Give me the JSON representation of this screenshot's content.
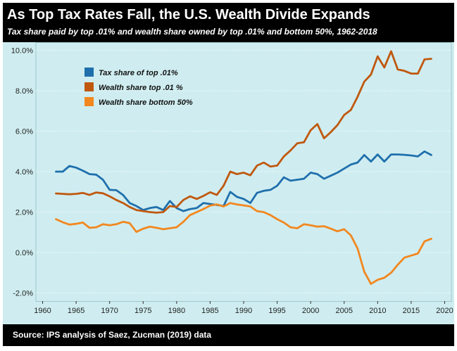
{
  "header": {
    "title": "As Top Tax Rates Fall, the U.S. Wealth Divide Expands",
    "subtitle": "Tax share paid by top .01% and wealth share owned by top .01% and bottom 50%, 1962-2018"
  },
  "footer": {
    "source": "Source: IPS analysis of Saez, Zucman (2019) data"
  },
  "colors": {
    "background": "#cfedf0",
    "header_bg": "#000000",
    "tax_top": "#1f6fad",
    "wealth_top": "#c0580f",
    "wealth_bottom": "#f2871f"
  },
  "chart_data": {
    "type": "line",
    "title": "As Top Tax Rates Fall, the U.S. Wealth Divide Expands",
    "subtitle": "Tax share paid by top .01% and wealth share owned by top .01% and bottom 50%, 1962-2018",
    "xlabel": "",
    "ylabel": "",
    "xlim": [
      1959,
      2021
    ],
    "ylim": [
      -2.4,
      10.4
    ],
    "x_ticks": [
      1960,
      1965,
      1970,
      1975,
      1980,
      1985,
      1990,
      1995,
      2000,
      2005,
      2010,
      2015,
      2020
    ],
    "y_ticks": [
      -2,
      0,
      2,
      4,
      6,
      8,
      10
    ],
    "y_tick_labels": [
      "-2.0%",
      "0.0%",
      "2.0%",
      "4.0%",
      "6.0%",
      "8.0%",
      "10.0%"
    ],
    "grid": true,
    "legend_position": "top-left",
    "x": [
      1962,
      1963,
      1964,
      1965,
      1966,
      1967,
      1968,
      1969,
      1970,
      1971,
      1972,
      1973,
      1974,
      1975,
      1976,
      1977,
      1978,
      1979,
      1980,
      1981,
      1982,
      1983,
      1984,
      1985,
      1986,
      1987,
      1988,
      1989,
      1990,
      1991,
      1992,
      1993,
      1994,
      1995,
      1996,
      1997,
      1998,
      1999,
      2000,
      2001,
      2002,
      2003,
      2004,
      2005,
      2006,
      2007,
      2008,
      2009,
      2010,
      2011,
      2012,
      2013,
      2014,
      2015,
      2016,
      2017,
      2018
    ],
    "series": [
      {
        "name": "Tax share of top .01%",
        "color": "#1f6fad",
        "values": [
          4.0,
          4.0,
          4.28,
          4.2,
          4.05,
          3.88,
          3.85,
          3.6,
          3.1,
          3.08,
          2.85,
          2.45,
          2.3,
          2.1,
          2.2,
          2.25,
          2.1,
          2.55,
          2.2,
          2.05,
          2.15,
          2.2,
          2.45,
          2.4,
          2.35,
          2.3,
          3.0,
          2.75,
          2.65,
          2.45,
          2.95,
          3.05,
          3.1,
          3.3,
          3.72,
          3.55,
          3.6,
          3.65,
          3.95,
          3.88,
          3.65,
          3.8,
          3.95,
          4.15,
          4.35,
          4.45,
          4.82,
          4.5,
          4.85,
          4.5,
          4.85,
          4.85,
          4.83,
          4.8,
          4.75,
          5.0,
          4.82
        ]
      },
      {
        "name": "Wealth share top .01 %",
        "color": "#c0580f",
        "values": [
          2.92,
          2.9,
          2.88,
          2.9,
          2.95,
          2.85,
          2.97,
          2.93,
          2.78,
          2.6,
          2.45,
          2.25,
          2.1,
          2.05,
          2.0,
          1.97,
          2.0,
          2.3,
          2.25,
          2.6,
          2.78,
          2.65,
          2.8,
          2.98,
          2.85,
          3.3,
          4.0,
          3.88,
          3.95,
          3.82,
          4.3,
          4.45,
          4.25,
          4.3,
          4.75,
          5.05,
          5.4,
          5.45,
          6.05,
          6.35,
          5.65,
          5.95,
          6.3,
          6.8,
          7.05,
          7.7,
          8.45,
          8.8,
          9.7,
          9.15,
          9.95,
          9.05,
          8.98,
          8.85,
          8.85,
          9.55,
          9.58
        ]
      },
      {
        "name": "Wealth share bottom 50%",
        "color": "#f2871f",
        "values": [
          1.65,
          1.5,
          1.38,
          1.42,
          1.48,
          1.22,
          1.25,
          1.4,
          1.35,
          1.4,
          1.52,
          1.45,
          1.02,
          1.18,
          1.28,
          1.22,
          1.15,
          1.2,
          1.25,
          1.52,
          1.85,
          2.0,
          2.15,
          2.32,
          2.38,
          2.28,
          2.45,
          2.38,
          2.33,
          2.28,
          2.05,
          2.0,
          1.85,
          1.65,
          1.48,
          1.25,
          1.2,
          1.4,
          1.35,
          1.28,
          1.3,
          1.18,
          1.05,
          1.15,
          0.85,
          0.2,
          -0.95,
          -1.55,
          -1.35,
          -1.25,
          -1.0,
          -0.6,
          -0.25,
          -0.15,
          -0.05,
          0.55,
          0.68
        ]
      }
    ]
  }
}
